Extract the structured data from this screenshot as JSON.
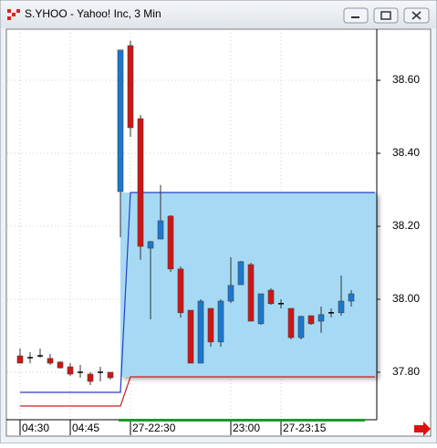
{
  "chart_data": {
    "type": "candlestick",
    "title": "S.YHOO - Yahoo! Inc, 3 Min",
    "categories": [
      "04:30",
      null,
      null,
      null,
      null,
      "04:45",
      null,
      null,
      null,
      null,
      null,
      "27-22:30",
      null,
      null,
      null,
      null,
      null,
      null,
      null,
      null,
      null,
      "23:00",
      null,
      null,
      null,
      null,
      "27-23:15",
      null,
      null,
      null,
      null,
      null,
      null,
      null
    ],
    "open": [
      37.845,
      37.84,
      37.845,
      37.838,
      37.828,
      37.815,
      37.8,
      37.795,
      37.8,
      37.8,
      38.295,
      38.695,
      38.495,
      38.14,
      38.165,
      38.228,
      38.083,
      37.97,
      37.825,
      37.975,
      37.883,
      37.995,
      38.04,
      38.095,
      37.933,
      38.025,
      37.988,
      37.975,
      37.895,
      37.955,
      37.94,
      37.963,
      37.963,
      37.995
    ],
    "high": [
      37.865,
      37.855,
      37.865,
      37.85,
      37.83,
      37.825,
      37.82,
      37.8,
      37.815,
      37.8,
      38.683,
      38.708,
      38.505,
      38.16,
      38.313,
      38.23,
      38.09,
      37.97,
      38.0,
      37.975,
      38.0,
      38.115,
      38.105,
      38.1,
      38.015,
      38.03,
      38.0,
      37.975,
      37.955,
      37.955,
      37.98,
      37.975,
      38.065,
      38.025
    ],
    "low": [
      37.825,
      37.825,
      37.84,
      37.82,
      37.81,
      37.79,
      37.785,
      37.765,
      37.775,
      37.78,
      38.17,
      38.445,
      38.108,
      37.945,
      38.165,
      38.075,
      37.95,
      37.825,
      37.825,
      37.87,
      37.87,
      37.99,
      38.04,
      37.94,
      37.93,
      37.985,
      37.975,
      37.89,
      37.89,
      37.93,
      37.908,
      37.95,
      37.955,
      37.98
    ],
    "close": [
      37.825,
      37.84,
      37.845,
      37.825,
      37.812,
      37.795,
      37.8,
      37.775,
      37.8,
      37.785,
      38.683,
      38.47,
      38.145,
      38.158,
      38.215,
      38.083,
      37.963,
      37.825,
      37.995,
      37.883,
      37.995,
      38.038,
      38.103,
      37.94,
      38.015,
      37.988,
      37.988,
      37.895,
      37.953,
      37.933,
      37.958,
      37.963,
      37.995,
      38.015
    ],
    "up_color": "#1a78d0",
    "down_color": "#d01515",
    "doji_color": "#000000",
    "bands": [
      {
        "color": "#2a3bc8",
        "values": [
          37.745,
          38.2925
        ]
      },
      {
        "color": "#c82020",
        "values": [
          37.7075,
          37.7875
        ]
      }
    ],
    "band_fill": "#a6daf4",
    "ylim": [
      37.67,
      38.74
    ],
    "yticks": [
      {
        "value": 37.8,
        "label": "37.80"
      },
      {
        "value": 38.0,
        "label": "38.00"
      },
      {
        "value": 38.2,
        "label": "38.20"
      },
      {
        "value": 38.4,
        "label": "38.40"
      },
      {
        "value": 38.6,
        "label": "38.60"
      }
    ],
    "grid": true
  }
}
